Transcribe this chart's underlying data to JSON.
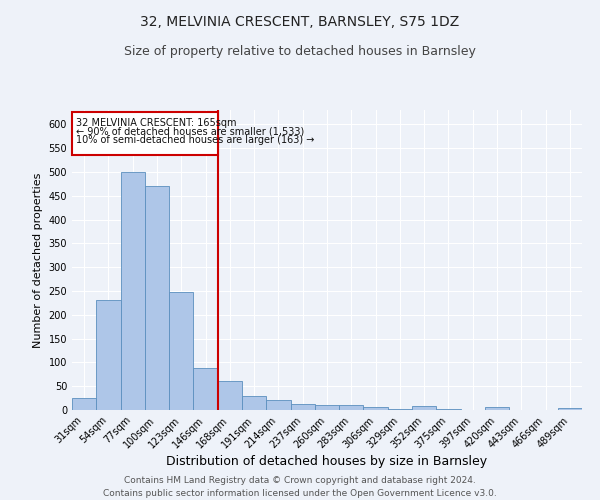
{
  "title": "32, MELVINIA CRESCENT, BARNSLEY, S75 1DZ",
  "subtitle": "Size of property relative to detached houses in Barnsley",
  "xlabel": "Distribution of detached houses by size in Barnsley",
  "ylabel": "Number of detached properties",
  "categories": [
    "31sqm",
    "54sqm",
    "77sqm",
    "100sqm",
    "123sqm",
    "146sqm",
    "168sqm",
    "191sqm",
    "214sqm",
    "237sqm",
    "260sqm",
    "283sqm",
    "306sqm",
    "329sqm",
    "352sqm",
    "375sqm",
    "397sqm",
    "420sqm",
    "443sqm",
    "466sqm",
    "489sqm"
  ],
  "values": [
    25,
    230,
    500,
    470,
    248,
    88,
    60,
    30,
    22,
    13,
    11,
    10,
    7,
    3,
    8,
    3,
    0,
    6,
    1,
    0,
    5
  ],
  "bar_color": "#aec6e8",
  "bar_edge_color": "#5b8fbe",
  "vline_color": "#cc0000",
  "vline_index": 6,
  "annotation_title": "32 MELVINIA CRESCENT: 165sqm",
  "annotation_line1": "← 90% of detached houses are smaller (1,533)",
  "annotation_line2": "10% of semi-detached houses are larger (163) →",
  "annotation_box_color": "#ffffff",
  "annotation_box_edge": "#cc0000",
  "ylim": [
    0,
    630
  ],
  "yticks": [
    0,
    50,
    100,
    150,
    200,
    250,
    300,
    350,
    400,
    450,
    500,
    550,
    600
  ],
  "footer_line1": "Contains HM Land Registry data © Crown copyright and database right 2024.",
  "footer_line2": "Contains public sector information licensed under the Open Government Licence v3.0.",
  "bg_color": "#eef2f9",
  "grid_color": "#ffffff",
  "title_fontsize": 10,
  "subtitle_fontsize": 9,
  "xlabel_fontsize": 9,
  "ylabel_fontsize": 8,
  "tick_fontsize": 7,
  "annot_fontsize": 7,
  "footer_fontsize": 6.5
}
